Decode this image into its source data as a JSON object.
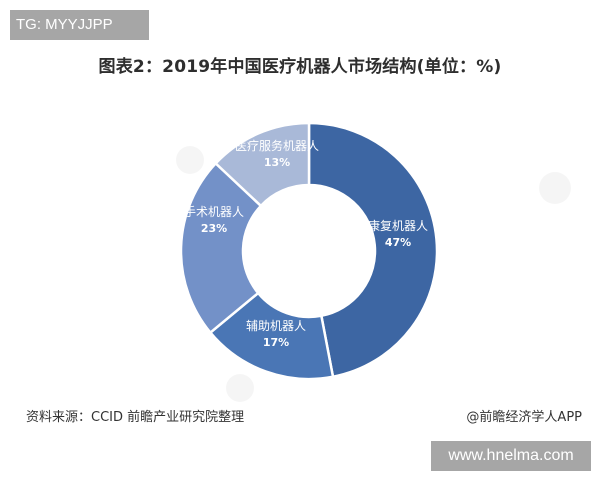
{
  "badges": {
    "top_left": "TG: MYYJJPP",
    "bottom_right": "www.hnelma.com"
  },
  "footer": {
    "source": "资料来源：CCID 前瞻产业研究院整理",
    "brand": "@前瞻经济学人APP"
  },
  "chart_data": {
    "type": "pie",
    "variant": "donut",
    "title": "图表2：2019年中国医疗机器人市场结构(单位：%)",
    "unit": "%",
    "categories": [
      "康复机器人",
      "辅助机器人",
      "手术机器人",
      "医疗服务机器人"
    ],
    "values": [
      47,
      17,
      23,
      13
    ],
    "labels": [
      "47%",
      "17%",
      "23%",
      "13%"
    ],
    "colors": [
      "#3d66a3",
      "#4a76b5",
      "#7391c8",
      "#a9b9d8"
    ],
    "start_angle_deg": 0,
    "direction": "clockwise",
    "legend": "none (labels on segments)"
  }
}
